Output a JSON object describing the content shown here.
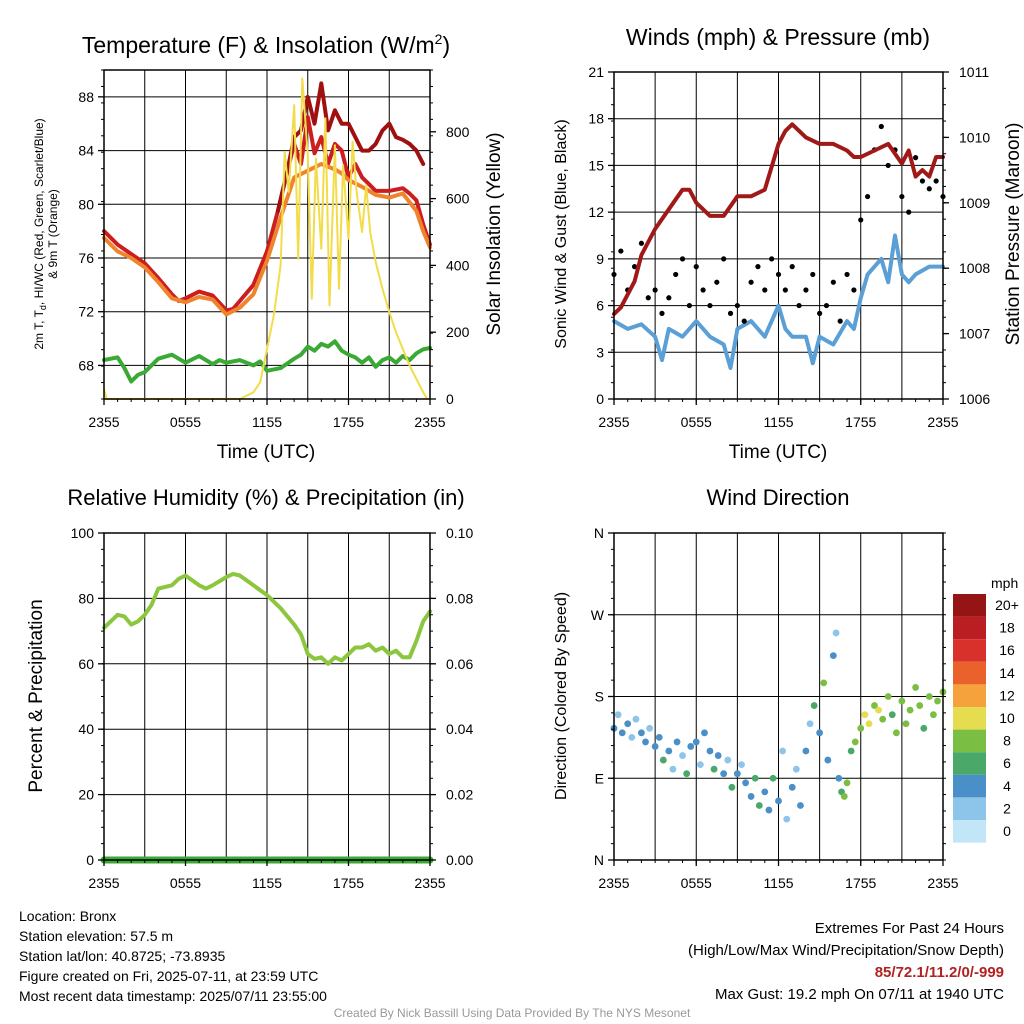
{
  "colors": {
    "temperature_red": "#cc1e1e",
    "heat_index_darkred": "#a01010",
    "temperature_9m_orange": "#f0832d",
    "dewpoint_green": "#3aaa35",
    "insolation_yellow": "#f2dc4a",
    "wind_blue": "#5a9fd6",
    "gust_black": "#000000",
    "pressure_maroon": "#a01818",
    "rh_green": "#8cc63f",
    "precip_green": "#3aaa35"
  },
  "time_ticks": [
    "2355",
    "0555",
    "1155",
    "1755",
    "2355"
  ],
  "chart_data": [
    {
      "id": "temp",
      "type": "line",
      "title_main": "Temperature (F) & Insolation (W/m",
      "title_sup": "2",
      "title_end": ")",
      "xlabel": "Time (UTC)",
      "ylabel_lines": [
        "2m T, T",
        "d",
        ", HI/WC (Red, Green, Scarlet/Blue)",
        "& 9m T (Orange)"
      ],
      "ylabel2": "Solar Insolation (Yellow)",
      "ylim": [
        65.5,
        90
      ],
      "yticks": [
        "68",
        "72",
        "76",
        "80",
        "84",
        "88"
      ],
      "y2lim": [
        0,
        985
      ],
      "y2ticks": [
        "0",
        "200",
        "400",
        "600",
        "800"
      ],
      "x_hours": [
        0,
        24
      ],
      "series": [
        {
          "key": "temp_2m",
          "color": "#cc1e1e",
          "x": [
            0,
            1,
            2,
            3,
            4,
            5,
            5.5,
            6,
            7,
            8,
            9,
            9.5,
            10,
            11,
            12,
            12.8,
            13.5,
            14,
            14.5,
            15,
            15.5,
            16,
            16.5,
            17,
            17.5,
            18,
            18.5,
            19,
            19.5,
            20,
            21,
            22,
            22.5,
            23,
            23.5,
            24
          ],
          "values": [
            78,
            77,
            76.3,
            75.6,
            74.5,
            73.3,
            72.8,
            73,
            73.5,
            73.2,
            72.1,
            72.2,
            72.8,
            74,
            76.5,
            79.5,
            82.5,
            84.5,
            83,
            86.5,
            83.8,
            85,
            83,
            84.5,
            84,
            82,
            83,
            82,
            81.5,
            81,
            81,
            81.2,
            80.8,
            80.3,
            78.5,
            77
          ]
        },
        {
          "key": "heat_index",
          "color": "#a01010",
          "x": [
            12.8,
            13.5,
            14,
            14.5,
            15,
            15.5,
            16,
            16.5,
            17,
            17.5,
            18,
            18.5,
            19,
            19.5,
            20,
            20.5,
            21,
            21.5,
            22,
            22.5,
            23,
            23.5
          ],
          "values": [
            79.5,
            82.5,
            85,
            85.5,
            88,
            86,
            89,
            85.5,
            87,
            86,
            86,
            85,
            84,
            84,
            84.5,
            85.5,
            86,
            85,
            84.8,
            84.5,
            84,
            83
          ]
        },
        {
          "key": "temp_9m",
          "color": "#f0832d",
          "x": [
            0,
            1,
            2,
            3,
            4,
            5,
            6,
            7,
            8,
            9,
            10,
            11,
            12,
            13,
            14,
            15,
            16,
            17,
            17.5,
            18,
            19,
            20,
            21,
            22,
            23,
            23.5,
            24
          ],
          "values": [
            77.5,
            76.5,
            76,
            75.3,
            74.2,
            73,
            72.7,
            73.1,
            72.9,
            71.8,
            72.3,
            73.3,
            75.8,
            79,
            82,
            82.5,
            83,
            82.6,
            82.3,
            81.8,
            81.3,
            80.7,
            80.5,
            80.8,
            79.5,
            78,
            76.8
          ]
        },
        {
          "key": "dewpoint",
          "color": "#3aaa35",
          "x": [
            0,
            0.5,
            1,
            1.5,
            2,
            2.5,
            3,
            4,
            5,
            6,
            7,
            8,
            8.5,
            9,
            10,
            11,
            11.5,
            12,
            13,
            14,
            14.5,
            15,
            15.5,
            16,
            16.5,
            17,
            17.5,
            18,
            18.5,
            19,
            19.5,
            20,
            20.5,
            21,
            21.5,
            22,
            22.5,
            23,
            23.5,
            24
          ],
          "values": [
            68.4,
            68.5,
            68.6,
            67.8,
            66.8,
            67.3,
            67.5,
            68.5,
            68.8,
            68.2,
            68.7,
            68.1,
            68.4,
            68.2,
            68.4,
            68,
            68.3,
            67.6,
            67.8,
            68.5,
            68.8,
            69.4,
            69.1,
            69.6,
            69.4,
            69.8,
            69.1,
            68.8,
            68.6,
            68.2,
            68.6,
            67.9,
            68.4,
            68.6,
            68.2,
            68.7,
            68.4,
            68.9,
            69.2,
            69.3
          ]
        },
        {
          "key": "insolation",
          "color": "#f2dc4a",
          "axis": "right",
          "x": [
            0,
            0.2,
            1,
            3,
            5,
            7,
            9,
            10,
            11,
            11.5,
            12,
            12.5,
            13,
            13.3,
            13.6,
            14,
            14.3,
            14.6,
            15,
            15.3,
            15.6,
            16,
            16.3,
            16.6,
            17,
            17.3,
            17.6,
            18,
            18.3,
            18.6,
            19,
            19.3,
            19.6,
            20,
            20.5,
            21,
            21.5,
            22,
            22.5,
            23,
            23.5,
            23.8
          ],
          "values": [
            30,
            0,
            0,
            0,
            0,
            0,
            0,
            0,
            20,
            50,
            150,
            250,
            400,
            740,
            620,
            880,
            420,
            960,
            730,
            300,
            720,
            450,
            840,
            280,
            760,
            330,
            700,
            480,
            770,
            620,
            500,
            640,
            500,
            410,
            330,
            260,
            200,
            150,
            100,
            60,
            20,
            0
          ]
        }
      ]
    },
    {
      "id": "wind",
      "type": "line",
      "title": "Winds (mph) & Pressure (mb)",
      "xlabel": "Time (UTC)",
      "ylabel": "Sonic Wind & Gust (Blue, Black)",
      "ylabel2": "Station Pressure (Maroon)",
      "ylim": [
        0,
        21
      ],
      "yticks": [
        "0",
        "3",
        "6",
        "9",
        "12",
        "15",
        "18",
        "21"
      ],
      "y2lim": [
        1006,
        1011
      ],
      "y2ticks": [
        "1006",
        "1007",
        "1008",
        "1009",
        "1010",
        "1011"
      ],
      "x_hours": [
        0,
        24
      ],
      "series": [
        {
          "key": "sonic_wind",
          "color": "#5a9fd6",
          "x": [
            0,
            1,
            2,
            3,
            3.5,
            4,
            5,
            6,
            7,
            8,
            8.5,
            9,
            10,
            11,
            12,
            12.5,
            13,
            14,
            14.5,
            15,
            16,
            17,
            17.5,
            18,
            18.5,
            19,
            19.5,
            20,
            20.5,
            21,
            21.5,
            22,
            23,
            24
          ],
          "values": [
            5,
            4.5,
            4.8,
            4,
            2.5,
            4.5,
            4,
            5,
            4,
            3.5,
            2,
            4.5,
            5,
            4,
            6,
            4.5,
            4,
            4,
            2.3,
            4,
            3.5,
            5,
            4.5,
            6.5,
            8,
            8.5,
            9,
            7.5,
            10.5,
            8,
            7.5,
            8,
            8.5,
            8.5
          ]
        },
        {
          "key": "gust",
          "color": "#000000",
          "x": [
            0,
            0.5,
            1,
            1.5,
            2,
            2.5,
            3,
            3.5,
            4,
            4.5,
            5,
            5.5,
            6,
            6.5,
            7,
            7.5,
            8,
            8.5,
            9,
            9.5,
            10,
            10.5,
            11,
            11.5,
            12,
            12.5,
            13,
            13.5,
            14,
            14.5,
            15,
            15.5,
            16,
            16.5,
            17,
            17.5,
            18,
            18.5,
            19,
            19.5,
            20,
            20.5,
            21,
            21.5,
            22,
            22.5,
            23,
            23.5,
            24
          ],
          "values": [
            8,
            9.5,
            7,
            8.5,
            10,
            6.5,
            7,
            5.5,
            6.5,
            8,
            9,
            6,
            8.5,
            7,
            6,
            7.5,
            9,
            5.5,
            6,
            5,
            7.5,
            8.5,
            7,
            9,
            8,
            7,
            8.5,
            6,
            7,
            8,
            5.5,
            6,
            7.5,
            5,
            8,
            7,
            11.5,
            13,
            16,
            17.5,
            15,
            16,
            13,
            12,
            15.5,
            14,
            13.5,
            14,
            13
          ]
        },
        {
          "key": "pressure",
          "color": "#a01818",
          "axis": "right",
          "x": [
            0,
            0.5,
            1,
            1.5,
            2,
            3,
            4,
            5,
            5.5,
            6,
            7,
            8,
            9,
            10,
            11,
            12,
            12.5,
            13,
            14,
            15,
            16,
            17,
            17.5,
            18,
            19,
            20,
            21,
            21.5,
            22,
            22.5,
            23,
            23.5,
            24
          ],
          "values": [
            1007.3,
            1007.4,
            1007.6,
            1007.8,
            1008.2,
            1008.6,
            1008.9,
            1009.2,
            1009.2,
            1009,
            1008.8,
            1008.8,
            1009.1,
            1009.1,
            1009.2,
            1009.9,
            1010.1,
            1010.2,
            1010,
            1009.9,
            1009.9,
            1009.8,
            1009.7,
            1009.7,
            1009.8,
            1009.9,
            1009.6,
            1009.8,
            1009.4,
            1009.5,
            1009.4,
            1009.7,
            1009.7
          ]
        }
      ]
    },
    {
      "id": "rh",
      "type": "line",
      "title": "Relative Humidity (%) & Precipitation (in)",
      "ylabel": "Percent & Precipitation",
      "ylim": [
        0,
        100
      ],
      "yticks": [
        "0",
        "20",
        "40",
        "60",
        "80",
        "100"
      ],
      "y2lim": [
        0,
        0.1
      ],
      "y2ticks": [
        "0.00",
        "0.02",
        "0.04",
        "0.06",
        "0.08",
        "0.10"
      ],
      "x_hours": [
        0,
        24
      ],
      "series": [
        {
          "key": "rh",
          "color": "#8cc63f",
          "x": [
            0,
            0.5,
            1,
            1.5,
            2,
            2.5,
            3,
            3.5,
            4,
            5,
            5.5,
            6,
            7,
            7.5,
            8,
            9,
            9.5,
            10,
            11,
            12,
            13,
            14,
            14.5,
            15,
            15.5,
            16,
            16.5,
            17,
            17.5,
            18,
            18.5,
            19,
            19.5,
            20,
            20.5,
            21,
            21.5,
            22,
            22.5,
            23,
            23.5,
            24
          ],
          "values": [
            71,
            73,
            75,
            74.5,
            72,
            73,
            75,
            78,
            83,
            84,
            86,
            87,
            84,
            83,
            84,
            86.5,
            87.5,
            87,
            84,
            81,
            77,
            72,
            69,
            63,
            61.5,
            62,
            60,
            62,
            61,
            63,
            65,
            65,
            66,
            64,
            65,
            63,
            64,
            62,
            62,
            67,
            73,
            76
          ]
        },
        {
          "key": "precipitation",
          "color": "#3aaa35",
          "axis": "right",
          "x": [
            0,
            24
          ],
          "values": [
            0,
            0
          ]
        }
      ]
    },
    {
      "id": "dir",
      "type": "scatter",
      "title": "Wind Direction",
      "ylabel": "Direction (Colored By Speed)",
      "yticks": [
        "N",
        "E",
        "S",
        "W",
        "N"
      ],
      "ylim": [
        0,
        360
      ],
      "x_hours": [
        0,
        24
      ],
      "colorbar": {
        "unit": "mph",
        "labels": [
          "0",
          "2",
          "4",
          "6",
          "8",
          "10",
          "12",
          "14",
          "16",
          "18",
          "20+"
        ],
        "colors": [
          "#c2e6f7",
          "#8cc4ea",
          "#4a8fc8",
          "#4aa869",
          "#7abf43",
          "#e5dc50",
          "#f5a23c",
          "#eb612b",
          "#d8302a",
          "#bb1e22",
          "#951515"
        ]
      },
      "x": [
        0,
        0.3,
        0.6,
        1,
        1.3,
        1.6,
        2,
        2.3,
        2.6,
        3,
        3.3,
        3.6,
        4,
        4.3,
        4.6,
        5,
        5.3,
        5.6,
        6,
        6.3,
        6.6,
        7,
        7.3,
        7.6,
        8,
        8.3,
        8.6,
        9,
        9.3,
        9.6,
        10,
        10.3,
        10.6,
        11,
        11.3,
        11.6,
        12,
        12.3,
        12.6,
        13,
        13.3,
        13.6,
        14,
        14.3,
        14.6,
        15,
        15.3,
        15.6,
        16,
        16.2,
        16.4,
        16.6,
        16.8,
        17,
        17.3,
        17.6,
        18,
        18.3,
        18.6,
        19,
        19.3,
        19.6,
        20,
        20.3,
        20.6,
        21,
        21.3,
        21.6,
        22,
        22.3,
        22.6,
        23,
        23.3,
        23.6,
        24
      ],
      "values": [
        145,
        160,
        140,
        150,
        135,
        155,
        140,
        130,
        145,
        125,
        135,
        110,
        120,
        100,
        130,
        115,
        95,
        125,
        130,
        105,
        140,
        120,
        100,
        115,
        95,
        110,
        80,
        95,
        105,
        85,
        70,
        90,
        60,
        75,
        55,
        90,
        65,
        120,
        45,
        80,
        100,
        60,
        120,
        150,
        170,
        140,
        195,
        110,
        225,
        250,
        90,
        75,
        70,
        85,
        120,
        130,
        145,
        160,
        150,
        170,
        165,
        155,
        180,
        160,
        140,
        175,
        150,
        165,
        190,
        170,
        145,
        180,
        160,
        175,
        185
      ],
      "speeds": [
        4,
        3,
        4,
        4,
        2,
        3,
        4,
        4,
        2,
        4,
        4,
        6,
        4,
        2,
        4,
        3,
        6,
        4,
        4,
        2,
        4,
        4,
        6,
        4,
        4,
        3,
        6,
        4,
        2,
        4,
        4,
        6,
        6,
        4,
        4,
        6,
        4,
        3,
        2,
        4,
        3,
        4,
        4,
        3,
        6,
        4,
        8,
        4,
        4,
        3,
        4,
        6,
        8,
        8,
        6,
        8,
        9,
        10,
        10,
        8,
        10,
        9,
        8,
        7,
        8,
        9,
        8,
        8,
        9,
        8,
        7,
        8,
        9,
        8,
        8
      ]
    }
  ],
  "info": {
    "location": "Location: Bronx",
    "elevation": "Station elevation: 57.5 m",
    "latlon": "Station lat/lon: 40.8725; -73.8935",
    "created": "Figure created on Fri, 2025-07-11, at 23:59 UTC",
    "recent": "Most recent data timestamp: 2025/07/11 23:55:00"
  },
  "extremes": {
    "title": "Extremes For Past 24 Hours",
    "subtitle": "(High/Low/Max Wind/Precipitation/Snow Depth)",
    "values": "85/72.1/11.2/0/-999",
    "gust": "Max Gust: 19.2 mph On 07/11 at 1940 UTC"
  },
  "credit": "Created By Nick Bassill Using Data Provided By The NYS Mesonet"
}
